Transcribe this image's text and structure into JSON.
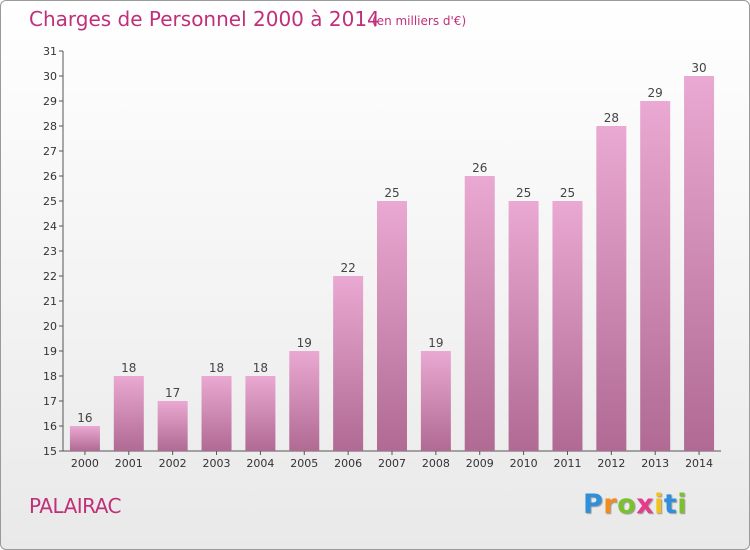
{
  "title": "Charges de Personnel 2000 à 2014",
  "subtitle": "(en milliers d'€)",
  "place": "PALAIRAC",
  "logo": {
    "letters": [
      "P",
      "r",
      "o",
      "x",
      "i",
      "t",
      "i"
    ],
    "colors": [
      "#2f8fd8",
      "#f28c1e",
      "#7cbf2f",
      "#e83a8c",
      "#f2c11e",
      "#2f8fd8",
      "#7cbf2f"
    ]
  },
  "colors": {
    "accent": "#c0307a",
    "bar_top": "#eaa9d2",
    "bar_bottom": "#b06a93"
  },
  "chart_data": {
    "type": "bar",
    "categories": [
      "2000",
      "2001",
      "2002",
      "2003",
      "2004",
      "2005",
      "2006",
      "2007",
      "2008",
      "2009",
      "2010",
      "2011",
      "2012",
      "2013",
      "2014"
    ],
    "values": [
      16,
      18,
      17,
      18,
      18,
      19,
      22,
      25,
      19,
      26,
      25,
      25,
      28,
      29,
      30
    ],
    "data_labels": [
      "16",
      "18",
      "17",
      "18",
      "18",
      "19",
      "22",
      "25",
      "19",
      "26",
      "25",
      "25",
      "28",
      "29",
      "30"
    ],
    "ylim": [
      15,
      31
    ],
    "yticks": [
      15,
      16,
      17,
      18,
      19,
      20,
      21,
      22,
      23,
      24,
      25,
      26,
      27,
      28,
      29,
      30,
      31
    ],
    "grid": false
  }
}
